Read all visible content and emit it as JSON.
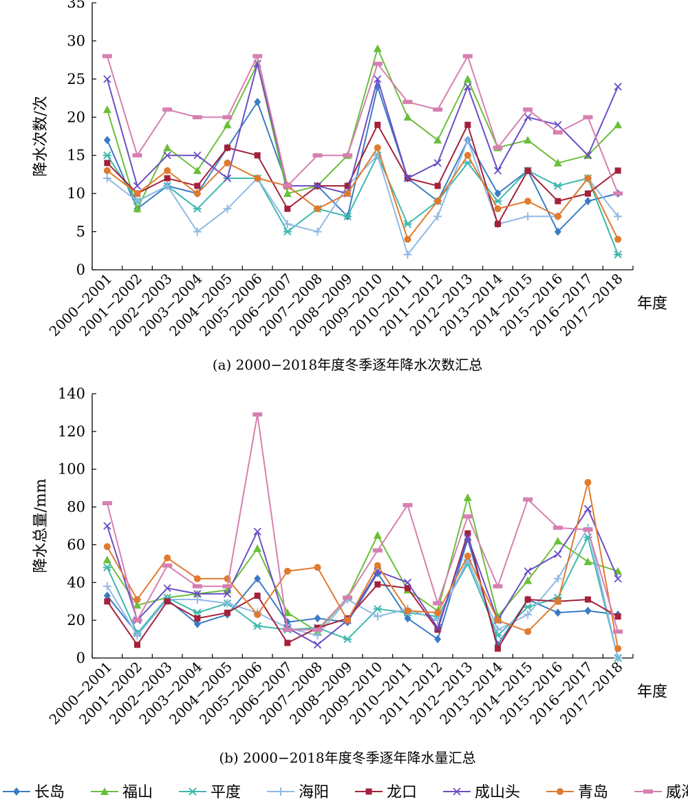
{
  "chart_data": [
    {
      "type": "line",
      "caption": "(a) 2000−2018年度冬季逐年降水次数汇总",
      "ylabel": "降水次数/次",
      "xlabel": "年度",
      "ylim": [
        0,
        35
      ],
      "yticks": [
        0,
        5,
        10,
        15,
        20,
        25,
        30,
        35
      ],
      "categories": [
        "2000−2001",
        "2001−2002",
        "2002−2003",
        "2003−2004",
        "2004−2005",
        "2005−2006",
        "2006−2007",
        "2007−2008",
        "2008−2009",
        "2009−2010",
        "2010−2011",
        "2011−2012",
        "2012−2013",
        "2013−2014",
        "2014−2015",
        "2015−2016",
        "2016−2017",
        "2017−2018"
      ],
      "grid": false,
      "series": [
        {
          "name": "长岛",
          "values": [
            17,
            8,
            11,
            10,
            16,
            22,
            11,
            11,
            7,
            24,
            12,
            9,
            17,
            10,
            13,
            5,
            9,
            10
          ]
        },
        {
          "name": "福山",
          "values": [
            21,
            8,
            16,
            13,
            19,
            27,
            10,
            11,
            15,
            29,
            20,
            17,
            25,
            16,
            17,
            14,
            15,
            19
          ]
        },
        {
          "name": "平度",
          "values": [
            15,
            9,
            11,
            8,
            12,
            12,
            5,
            8,
            7,
            15,
            6,
            9,
            14,
            9,
            13,
            11,
            12,
            2
          ]
        },
        {
          "name": "海阳",
          "values": [
            12,
            9,
            11,
            5,
            8,
            12,
            6,
            5,
            11,
            15,
            2,
            7,
            17,
            6,
            7,
            7,
            12,
            7
          ]
        },
        {
          "name": "龙口",
          "values": [
            14,
            10,
            12,
            11,
            16,
            15,
            8,
            11,
            11,
            19,
            12,
            11,
            19,
            6,
            13,
            9,
            10,
            13
          ]
        },
        {
          "name": "成山头",
          "values": [
            25,
            11,
            15,
            15,
            12,
            27,
            11,
            11,
            10,
            25,
            12,
            14,
            24,
            13,
            20,
            19,
            15,
            24
          ]
        },
        {
          "name": "青岛",
          "values": [
            13,
            10,
            13,
            10,
            14,
            12,
            11,
            8,
            10,
            16,
            4,
            9,
            15,
            8,
            9,
            7,
            12,
            4
          ]
        },
        {
          "name": "威海",
          "values": [
            28,
            15,
            21,
            20,
            20,
            28,
            11,
            15,
            15,
            27,
            22,
            21,
            28,
            16,
            21,
            18,
            20,
            10
          ]
        }
      ]
    },
    {
      "type": "line",
      "caption": "(b) 2000−2018年度冬季逐年降水量汇总",
      "ylabel": "降水总量/mm",
      "xlabel": "年度",
      "ylim": [
        0,
        140
      ],
      "yticks": [
        0,
        20,
        40,
        60,
        80,
        100,
        120,
        140
      ],
      "categories": [
        "2000−2001",
        "2001−2002",
        "2002−2003",
        "2003−2004",
        "2004−2005",
        "2005−2006",
        "2006−2007",
        "2007−2008",
        "2008−2009",
        "2009−2010",
        "2010−2011",
        "2011−2012",
        "2012−2013",
        "2013−2014",
        "2014−2015",
        "2015−2016",
        "2016−2017",
        "2017−2018"
      ],
      "grid": false,
      "series": [
        {
          "name": "长岛",
          "values": [
            33,
            13,
            31,
            18,
            23,
            42,
            19,
            21,
            19,
            45,
            21,
            10,
            63,
            7,
            31,
            24,
            25,
            23
          ]
        },
        {
          "name": "福山",
          "values": [
            52,
            28,
            32,
            34,
            36,
            58,
            24,
            14,
            32,
            65,
            36,
            25,
            85,
            22,
            41,
            62,
            51,
            46
          ]
        },
        {
          "name": "平度",
          "values": [
            48,
            13,
            32,
            24,
            29,
            17,
            15,
            16,
            10,
            26,
            24,
            22,
            50,
            12,
            27,
            32,
            64,
            0
          ]
        },
        {
          "name": "海阳",
          "values": [
            38,
            12,
            31,
            31,
            29,
            24,
            16,
            12,
            31,
            22,
            26,
            20,
            52,
            15,
            23,
            42,
            69,
            0
          ]
        },
        {
          "name": "龙口",
          "values": [
            30,
            7,
            30,
            21,
            24,
            33,
            8,
            16,
            21,
            39,
            37,
            15,
            66,
            5,
            31,
            30,
            31,
            22
          ]
        },
        {
          "name": "成山头",
          "values": [
            70,
            20,
            37,
            34,
            34,
            67,
            16,
            7,
            20,
            46,
            40,
            16,
            64,
            20,
            46,
            55,
            79,
            42
          ]
        },
        {
          "name": "青岛",
          "values": [
            59,
            31,
            53,
            42,
            42,
            23,
            46,
            48,
            20,
            49,
            25,
            24,
            54,
            20,
            14,
            30,
            93,
            5
          ]
        },
        {
          "name": "威海",
          "values": [
            82,
            20,
            49,
            38,
            38,
            129,
            15,
            15,
            32,
            57,
            81,
            29,
            75,
            38,
            84,
            69,
            68,
            14
          ]
        }
      ]
    }
  ],
  "legend": {
    "placement": "bottom",
    "items": [
      {
        "name": "长岛",
        "color": "#3a7cc4",
        "marker": "diamond"
      },
      {
        "name": "福山",
        "color": "#6abf3a",
        "marker": "triangle"
      },
      {
        "name": "平度",
        "color": "#3fb8ad",
        "marker": "asterisk"
      },
      {
        "name": "海阳",
        "color": "#8fb9e6",
        "marker": "plus"
      },
      {
        "name": "龙口",
        "color": "#a3213a",
        "marker": "square"
      },
      {
        "name": "成山头",
        "color": "#6b4fc4",
        "marker": "x"
      },
      {
        "name": "青岛",
        "color": "#e07a2f",
        "marker": "circle"
      },
      {
        "name": "威海",
        "color": "#d67fb0",
        "marker": "bar"
      }
    ]
  }
}
